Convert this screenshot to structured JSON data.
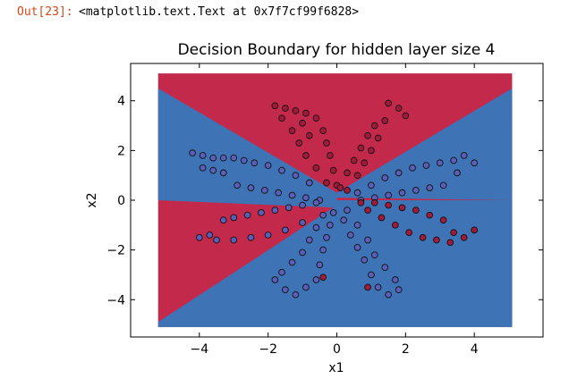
{
  "output": {
    "prompt": "Out[23]:",
    "text": "<matplotlib.text.Text at 0x7f7cf99f6828>"
  },
  "colors": {
    "red_region": "#c3294b",
    "blue_region": "#3e73b5",
    "red_point": "#a01a3a",
    "blue_point": "#5a5fb8",
    "point_edge": "#111111"
  },
  "chart_data": {
    "type": "scatter",
    "title": "Decision Boundary for hidden layer size 4",
    "xlabel": "x1",
    "ylabel": "x2",
    "xlim": [
      -6,
      6
    ],
    "ylim": [
      -5.5,
      5.5
    ],
    "xticks": [
      -4,
      -2,
      0,
      2,
      4
    ],
    "yticks": [
      -4,
      -2,
      0,
      2,
      4
    ],
    "xtick_labels": [
      "−4",
      "−2",
      "0",
      "2",
      "4"
    ],
    "ytick_labels": [
      "−4",
      "−2",
      "0",
      "2",
      "4"
    ],
    "contour_extent": {
      "x": [
        -5.2,
        5.1
      ],
      "y": [
        -5.1,
        5.1
      ]
    },
    "petals": 4,
    "points": [
      {
        "x": -4.2,
        "y": 1.9,
        "label": 1
      },
      {
        "x": -3.9,
        "y": 1.8,
        "label": 1
      },
      {
        "x": -3.6,
        "y": 1.7,
        "label": 1
      },
      {
        "x": -3.3,
        "y": 1.7,
        "label": 1
      },
      {
        "x": -3.0,
        "y": 1.7,
        "label": 1
      },
      {
        "x": -2.7,
        "y": 1.6,
        "label": 1
      },
      {
        "x": -2.4,
        "y": 1.5,
        "label": 1
      },
      {
        "x": -2.0,
        "y": 1.4,
        "label": 1
      },
      {
        "x": -1.6,
        "y": 1.2,
        "label": 1
      },
      {
        "x": -1.2,
        "y": 1.0,
        "label": 1
      },
      {
        "x": -0.8,
        "y": 0.7,
        "label": 1
      },
      {
        "x": -3.9,
        "y": 1.3,
        "label": 1
      },
      {
        "x": -3.6,
        "y": 1.2,
        "label": 1
      },
      {
        "x": -3.3,
        "y": 1.1,
        "label": 1
      },
      {
        "x": -2.9,
        "y": 0.6,
        "label": 1
      },
      {
        "x": -2.5,
        "y": 0.5,
        "label": 1
      },
      {
        "x": -2.1,
        "y": 0.4,
        "label": 1
      },
      {
        "x": -1.7,
        "y": 0.3,
        "label": 1
      },
      {
        "x": -1.3,
        "y": 0.2,
        "label": 1
      },
      {
        "x": -0.9,
        "y": 0.1,
        "label": 1
      },
      {
        "x": -0.5,
        "y": 0.0,
        "label": 1
      },
      {
        "x": -4.0,
        "y": -1.5,
        "label": 1
      },
      {
        "x": -3.7,
        "y": -1.4,
        "label": 1
      },
      {
        "x": -3.3,
        "y": -0.8,
        "label": 1
      },
      {
        "x": -3.0,
        "y": -0.7,
        "label": 1
      },
      {
        "x": -2.6,
        "y": -0.6,
        "label": 1
      },
      {
        "x": -2.2,
        "y": -0.5,
        "label": 1
      },
      {
        "x": -1.8,
        "y": -0.4,
        "label": 1
      },
      {
        "x": -1.4,
        "y": -0.3,
        "label": 1
      },
      {
        "x": -1.0,
        "y": -0.2,
        "label": 1
      },
      {
        "x": -0.6,
        "y": -0.1,
        "label": 1
      },
      {
        "x": -3.5,
        "y": -1.6,
        "label": 1
      },
      {
        "x": -3.0,
        "y": -1.6,
        "label": 1
      },
      {
        "x": -2.5,
        "y": -1.5,
        "label": 1
      },
      {
        "x": -2.0,
        "y": -1.4,
        "label": 1
      },
      {
        "x": -1.5,
        "y": -1.2,
        "label": 1
      },
      {
        "x": -1.0,
        "y": -0.9,
        "label": 1
      },
      {
        "x": -1.8,
        "y": 3.8,
        "label": 0
      },
      {
        "x": -1.5,
        "y": 3.7,
        "label": 0
      },
      {
        "x": -1.2,
        "y": 3.6,
        "label": 0
      },
      {
        "x": -0.9,
        "y": 3.5,
        "label": 0
      },
      {
        "x": -0.6,
        "y": 3.3,
        "label": 0
      },
      {
        "x": -0.4,
        "y": 2.8,
        "label": 0
      },
      {
        "x": -0.3,
        "y": 2.3,
        "label": 0
      },
      {
        "x": -0.2,
        "y": 1.8,
        "label": 0
      },
      {
        "x": -0.1,
        "y": 1.2,
        "label": 0
      },
      {
        "x": 0.0,
        "y": 0.6,
        "label": 0
      },
      {
        "x": -1.6,
        "y": 3.3,
        "label": 0
      },
      {
        "x": -1.3,
        "y": 2.8,
        "label": 0
      },
      {
        "x": -1.1,
        "y": 2.3,
        "label": 0
      },
      {
        "x": -0.9,
        "y": 1.8,
        "label": 0
      },
      {
        "x": -0.6,
        "y": 1.3,
        "label": 0
      },
      {
        "x": -0.3,
        "y": 0.7,
        "label": 0
      },
      {
        "x": -1.0,
        "y": 3.1,
        "label": 0
      },
      {
        "x": -0.8,
        "y": 2.6,
        "label": 0
      },
      {
        "x": 1.5,
        "y": 3.9,
        "label": 0
      },
      {
        "x": 1.8,
        "y": 3.7,
        "label": 0
      },
      {
        "x": 2.0,
        "y": 3.4,
        "label": 0
      },
      {
        "x": 1.4,
        "y": 3.2,
        "label": 0
      },
      {
        "x": 1.1,
        "y": 3.0,
        "label": 0
      },
      {
        "x": 0.9,
        "y": 2.6,
        "label": 0
      },
      {
        "x": 0.7,
        "y": 2.1,
        "label": 0
      },
      {
        "x": 0.5,
        "y": 1.6,
        "label": 0
      },
      {
        "x": 0.3,
        "y": 1.1,
        "label": 0
      },
      {
        "x": 0.1,
        "y": 0.5,
        "label": 0
      },
      {
        "x": 1.2,
        "y": 2.5,
        "label": 0
      },
      {
        "x": 1.0,
        "y": 2.0,
        "label": 0
      },
      {
        "x": 0.8,
        "y": 1.5,
        "label": 0
      },
      {
        "x": 0.6,
        "y": 1.0,
        "label": 0
      },
      {
        "x": 0.3,
        "y": 0.4,
        "label": 0
      },
      {
        "x": 4.0,
        "y": 1.5,
        "label": 1
      },
      {
        "x": 3.7,
        "y": 1.8,
        "label": 1
      },
      {
        "x": 3.4,
        "y": 1.6,
        "label": 1
      },
      {
        "x": 3.0,
        "y": 1.5,
        "label": 1
      },
      {
        "x": 2.6,
        "y": 1.4,
        "label": 1
      },
      {
        "x": 2.2,
        "y": 1.3,
        "label": 1
      },
      {
        "x": 1.8,
        "y": 1.1,
        "label": 1
      },
      {
        "x": 1.4,
        "y": 0.9,
        "label": 1
      },
      {
        "x": 1.0,
        "y": 0.6,
        "label": 1
      },
      {
        "x": 0.6,
        "y": 0.3,
        "label": 1
      },
      {
        "x": 3.5,
        "y": 1.1,
        "label": 1
      },
      {
        "x": 3.1,
        "y": 0.6,
        "label": 1
      },
      {
        "x": 2.7,
        "y": 0.5,
        "label": 1
      },
      {
        "x": 2.3,
        "y": 0.4,
        "label": 1
      },
      {
        "x": 1.9,
        "y": 0.3,
        "label": 1
      },
      {
        "x": 1.5,
        "y": 0.2,
        "label": 1
      },
      {
        "x": 1.1,
        "y": 0.1,
        "label": 1
      },
      {
        "x": 0.7,
        "y": 0.0,
        "label": 1
      },
      {
        "x": 4.0,
        "y": -1.2,
        "label": 0
      },
      {
        "x": 3.7,
        "y": -1.5,
        "label": 0
      },
      {
        "x": 3.4,
        "y": -1.3,
        "label": 0
      },
      {
        "x": 3.1,
        "y": -0.8,
        "label": 0
      },
      {
        "x": 2.7,
        "y": -0.6,
        "label": 0
      },
      {
        "x": 2.3,
        "y": -0.4,
        "label": 0
      },
      {
        "x": 1.9,
        "y": -0.3,
        "label": 0
      },
      {
        "x": 1.5,
        "y": -0.2,
        "label": 0
      },
      {
        "x": 1.1,
        "y": -0.1,
        "label": 0
      },
      {
        "x": 0.7,
        "y": -0.1,
        "label": 0
      },
      {
        "x": 3.3,
        "y": -1.7,
        "label": 0
      },
      {
        "x": 2.9,
        "y": -1.6,
        "label": 0
      },
      {
        "x": 2.5,
        "y": -1.5,
        "label": 0
      },
      {
        "x": 2.1,
        "y": -1.3,
        "label": 0
      },
      {
        "x": 1.7,
        "y": -1.0,
        "label": 0
      },
      {
        "x": 1.3,
        "y": -0.7,
        "label": 0
      },
      {
        "x": 0.9,
        "y": -0.4,
        "label": 0
      },
      {
        "x": -1.8,
        "y": -3.2,
        "label": 1
      },
      {
        "x": -1.5,
        "y": -3.6,
        "label": 1
      },
      {
        "x": -1.2,
        "y": -3.8,
        "label": 1
      },
      {
        "x": -0.9,
        "y": -3.5,
        "label": 1
      },
      {
        "x": -0.6,
        "y": -3.2,
        "label": 1
      },
      {
        "x": -0.5,
        "y": -2.6,
        "label": 1
      },
      {
        "x": -0.4,
        "y": -2.0,
        "label": 1
      },
      {
        "x": -0.3,
        "y": -1.5,
        "label": 1
      },
      {
        "x": -0.2,
        "y": -1.0,
        "label": 1
      },
      {
        "x": -0.1,
        "y": -0.5,
        "label": 1
      },
      {
        "x": -1.3,
        "y": -2.5,
        "label": 1
      },
      {
        "x": -1.0,
        "y": -2.1,
        "label": 1
      },
      {
        "x": -0.8,
        "y": -1.6,
        "label": 1
      },
      {
        "x": -0.6,
        "y": -1.1,
        "label": 1
      },
      {
        "x": -0.4,
        "y": -0.6,
        "label": 1
      },
      {
        "x": -1.6,
        "y": -2.9,
        "label": 1
      },
      {
        "x": 1.5,
        "y": -3.8,
        "label": 1
      },
      {
        "x": 1.8,
        "y": -3.6,
        "label": 1
      },
      {
        "x": 1.2,
        "y": -3.5,
        "label": 1
      },
      {
        "x": 1.0,
        "y": -3.0,
        "label": 1
      },
      {
        "x": 0.8,
        "y": -2.4,
        "label": 1
      },
      {
        "x": 0.6,
        "y": -1.9,
        "label": 1
      },
      {
        "x": 0.4,
        "y": -1.4,
        "label": 1
      },
      {
        "x": 0.2,
        "y": -0.8,
        "label": 1
      },
      {
        "x": 1.7,
        "y": -3.2,
        "label": 1
      },
      {
        "x": 1.4,
        "y": -2.7,
        "label": 1
      },
      {
        "x": 1.1,
        "y": -2.2,
        "label": 1
      },
      {
        "x": 0.9,
        "y": -1.6,
        "label": 1
      },
      {
        "x": 0.6,
        "y": -1.0,
        "label": 1
      },
      {
        "x": 0.3,
        "y": -0.4,
        "label": 1
      },
      {
        "x": 0.9,
        "y": -3.5,
        "label": 0
      },
      {
        "x": -0.4,
        "y": -3.1,
        "label": 0
      }
    ]
  }
}
